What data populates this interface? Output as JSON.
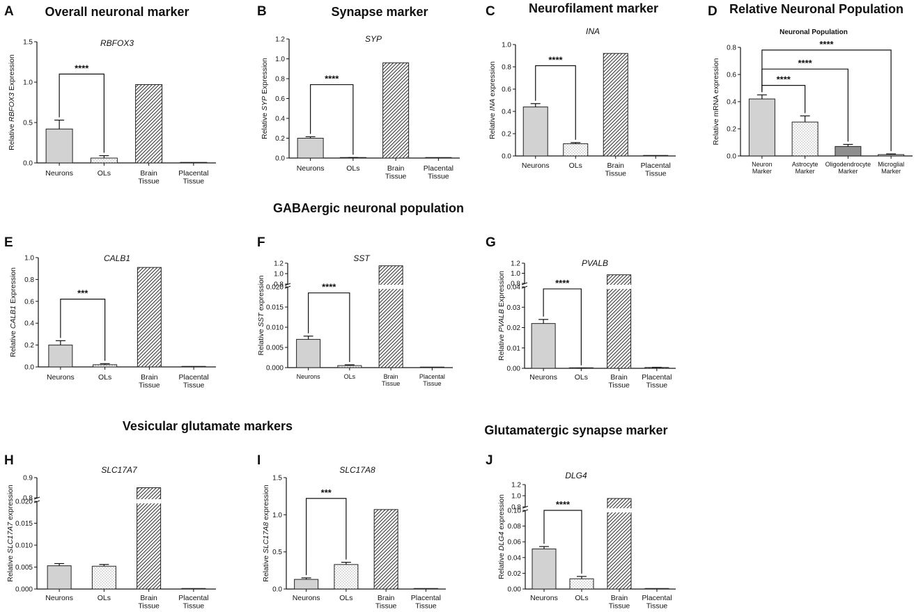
{
  "section_titles": {
    "gaba": "GABAergic neuronal population",
    "vglut": "Vesicular glutamate markers",
    "glut_syn": "Glutamatergic synapse marker"
  },
  "colors": {
    "neurons": "#d2d2d2",
    "dark_gray": "#8f8f8f",
    "bar_stroke": "#222222",
    "text": "#111111"
  },
  "chart_data": [
    {
      "id": "A",
      "letter": "A",
      "type": "bar",
      "title": "Overall neuronal marker",
      "gene": "RBFOX3",
      "ylabel_pre": "Relative ",
      "ylabel_gene": "RBFOX3",
      "ylabel_post": " Expression",
      "categories": [
        "Neurons",
        "OLs",
        "Brain|Tissue",
        "Placental|Tissue"
      ],
      "fills": [
        "solid",
        "dots",
        "hatch",
        "hatch"
      ],
      "values": [
        0.42,
        0.06,
        0.97,
        0.0
      ],
      "errors": [
        0.11,
        0.03,
        0,
        0
      ],
      "ylim": [
        0,
        1.5
      ],
      "ticks": [
        0.0,
        0.5,
        1.0,
        1.5
      ],
      "significance": [
        {
          "from": 0,
          "to": 1,
          "label": "****",
          "y": 1.1
        }
      ]
    },
    {
      "id": "B",
      "letter": "B",
      "type": "bar",
      "title": "Synapse marker",
      "gene": "SYP",
      "ylabel_pre": "Relative ",
      "ylabel_gene": "SYP",
      "ylabel_post": " Expression",
      "categories": [
        "Neurons",
        "OLs",
        "Brain|Tissue",
        "Placental|Tissue"
      ],
      "fills": [
        "solid",
        "dots",
        "hatch",
        "hatch"
      ],
      "values": [
        0.2,
        0.0,
        0.96,
        0.0
      ],
      "errors": [
        0.015,
        0.005,
        0,
        0
      ],
      "ylim": [
        0,
        1.2
      ],
      "ticks": [
        0.0,
        0.2,
        0.4,
        0.6,
        0.8,
        1.0,
        1.2
      ],
      "significance": [
        {
          "from": 0,
          "to": 1,
          "label": "****",
          "y": 0.74
        }
      ]
    },
    {
      "id": "C",
      "letter": "C",
      "type": "bar",
      "title": "Neurofilament marker",
      "gene": "INA",
      "ylabel_pre": "Relative ",
      "ylabel_gene": "INA",
      "ylabel_post": " expression",
      "categories": [
        "Neurons",
        "OLs",
        "Brain|Tissue",
        "Placental|Tissue"
      ],
      "fills": [
        "solid",
        "dots",
        "hatch",
        "hatch"
      ],
      "values": [
        0.44,
        0.11,
        0.92,
        0.0
      ],
      "errors": [
        0.03,
        0.01,
        0,
        0
      ],
      "ylim": [
        0,
        1.0
      ],
      "ticks": [
        0.0,
        0.2,
        0.4,
        0.6,
        0.8,
        1.0
      ],
      "significance": [
        {
          "from": 0,
          "to": 1,
          "label": "****",
          "y": 0.81
        }
      ]
    },
    {
      "id": "D",
      "letter": "D",
      "type": "bar",
      "title": "Relative Neuronal Population",
      "gene": "",
      "subtitle": "Neuronal  Population",
      "ylabel_pre": "Relative mRNA expression",
      "ylabel_gene": "",
      "ylabel_post": "",
      "categories": [
        "Neuron|Marker",
        "Astrocyte|Marker",
        "Oligodendrocyte|Marker",
        "Microglial|Marker"
      ],
      "fills": [
        "solid",
        "dots",
        "darksolid",
        "solid"
      ],
      "values": [
        0.42,
        0.25,
        0.07,
        0.01
      ],
      "errors": [
        0.03,
        0.045,
        0.015,
        0.005
      ],
      "ylim": [
        0,
        0.8
      ],
      "ticks": [
        0.0,
        0.2,
        0.4,
        0.6,
        0.8
      ],
      "significance": [
        {
          "from": 0,
          "to": 1,
          "label": "****",
          "y": 0.52
        },
        {
          "from": 0,
          "to": 2,
          "label": "****",
          "y": 0.64
        },
        {
          "from": 0,
          "to": 3,
          "label": "****",
          "y": 0.78
        }
      ]
    },
    {
      "id": "E",
      "letter": "E",
      "type": "bar",
      "title": "",
      "gene": "CALB1",
      "ylabel_pre": "Relative ",
      "ylabel_gene": "CALB1",
      "ylabel_post": " Expression",
      "categories": [
        "Neurons",
        "OLs",
        "Brain|Tissue",
        "Placental|Tissue"
      ],
      "fills": [
        "solid",
        "dots",
        "hatch",
        "hatch"
      ],
      "values": [
        0.2,
        0.02,
        0.91,
        0.0
      ],
      "errors": [
        0.04,
        0.01,
        0,
        0
      ],
      "ylim": [
        0,
        1.0
      ],
      "ticks": [
        0.0,
        0.2,
        0.4,
        0.6,
        0.8,
        1.0
      ],
      "significance": [
        {
          "from": 0,
          "to": 1,
          "label": "***",
          "y": 0.62
        }
      ]
    },
    {
      "id": "F",
      "letter": "F",
      "type": "bar",
      "title": "",
      "gene": "SST",
      "ylabel_pre": "Relative ",
      "ylabel_gene": "SST",
      "ylabel_post": " expression",
      "categories": [
        "Neurons",
        "OLs",
        "Brain|Tissue",
        "Placental|Tissue"
      ],
      "fills": [
        "solid",
        "dots",
        "hatch",
        "hatch"
      ],
      "values": [
        0.007,
        0.0005,
        1.15,
        0.0
      ],
      "errors": [
        0.0008,
        0.0002,
        0,
        0
      ],
      "broken": true,
      "low_ylim": [
        0,
        0.02
      ],
      "low_ticks": [
        0.0,
        0.005,
        0.01,
        0.015,
        0.02
      ],
      "high_ylim": [
        0.8,
        1.2
      ],
      "high_ticks": [
        0.8,
        1.0,
        1.2
      ],
      "significance": [
        {
          "from": 0,
          "to": 1,
          "label": "****",
          "y": 0.0185
        }
      ]
    },
    {
      "id": "G",
      "letter": "G",
      "type": "bar",
      "title": "",
      "gene": "PVALB",
      "ylabel_pre": "Relative ",
      "ylabel_gene": "PVALB",
      "ylabel_post": " Expression",
      "categories": [
        "Neurons",
        "OLs",
        "Brain|Tissue",
        "Placental|Tissue"
      ],
      "fills": [
        "solid",
        "dots",
        "hatch",
        "hatch"
      ],
      "values": [
        0.022,
        0.0,
        0.97,
        0.0003
      ],
      "errors": [
        0.002,
        0.0001,
        0,
        0.0002
      ],
      "broken": true,
      "low_ylim": [
        0,
        0.04
      ],
      "low_ticks": [
        0.0,
        0.01,
        0.02,
        0.03,
        0.04
      ],
      "high_ylim": [
        0.8,
        1.2
      ],
      "high_ticks": [
        0.8,
        1.0,
        1.2
      ],
      "significance": [
        {
          "from": 0,
          "to": 1,
          "label": "****",
          "y": 0.039
        }
      ]
    },
    {
      "id": "H",
      "letter": "H",
      "type": "bar",
      "title": "",
      "gene": "SLC17A7",
      "ylabel_pre": "Relative ",
      "ylabel_gene": "SLC17A7",
      "ylabel_post": " expression",
      "categories": [
        "Neurons",
        "OLs",
        "Brain|Tissue",
        "Placental|Tissue"
      ],
      "fills": [
        "solid",
        "dots",
        "hatch",
        "hatch"
      ],
      "values": [
        0.0053,
        0.0052,
        0.85,
        0.0
      ],
      "errors": [
        0.0005,
        0.0004,
        0,
        0
      ],
      "broken": true,
      "low_ylim": [
        0,
        0.02
      ],
      "low_ticks": [
        0.0,
        0.005,
        0.01,
        0.015,
        0.02
      ],
      "high_ylim": [
        0.8,
        0.9
      ],
      "high_ticks": [
        0.8,
        0.9
      ],
      "significance": []
    },
    {
      "id": "I",
      "letter": "I",
      "type": "bar",
      "title": "",
      "gene": "SLC17A8",
      "ylabel_pre": "Relative ",
      "ylabel_gene": "SLC17A8",
      "ylabel_post": " expression",
      "categories": [
        "Neurons",
        "OLs",
        "Brain|Tissue",
        "Placental|Tissue"
      ],
      "fills": [
        "solid",
        "dots",
        "hatch",
        "hatch"
      ],
      "values": [
        0.13,
        0.33,
        1.07,
        0.0
      ],
      "errors": [
        0.02,
        0.03,
        0,
        0
      ],
      "ylim": [
        0,
        1.5
      ],
      "ticks": [
        0.0,
        0.5,
        1.0,
        1.5
      ],
      "significance": [
        {
          "from": 0,
          "to": 1,
          "label": "***",
          "y": 1.22
        }
      ]
    },
    {
      "id": "J",
      "letter": "J",
      "type": "bar",
      "title": "",
      "gene": "DLG4",
      "ylabel_pre": "Relative ",
      "ylabel_gene": "DLG4",
      "ylabel_post": " expression",
      "categories": [
        "Neurons",
        "OLs",
        "Brain|Tissue",
        "Placental|Tissue"
      ],
      "fills": [
        "solid",
        "dots",
        "hatch",
        "hatch"
      ],
      "values": [
        0.051,
        0.013,
        0.95,
        0.0
      ],
      "errors": [
        0.003,
        0.003,
        0,
        0
      ],
      "broken": true,
      "low_ylim": [
        0,
        0.1
      ],
      "low_ticks": [
        0.0,
        0.02,
        0.04,
        0.06,
        0.08,
        0.1
      ],
      "high_ylim": [
        0.8,
        1.2
      ],
      "high_ticks": [
        0.8,
        1.0,
        1.2
      ],
      "significance": [
        {
          "from": 0,
          "to": 1,
          "label": "****",
          "y": 0.1145
        }
      ]
    }
  ]
}
